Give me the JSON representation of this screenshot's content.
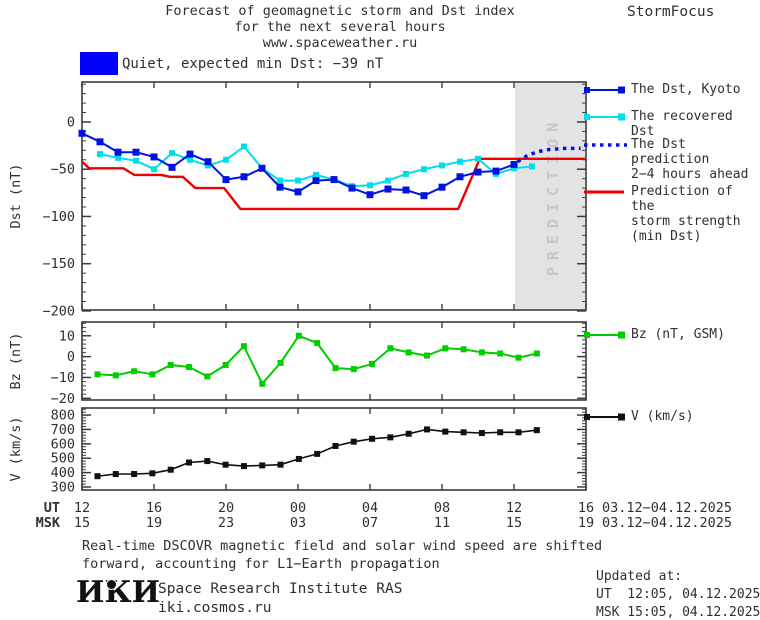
{
  "header": {
    "title_line1": "Forecast of geomagnetic storm and Dst index",
    "title_line2": "for the next several hours",
    "title_line3": "www.spaceweather.ru",
    "brand": "StormFocus"
  },
  "status": {
    "label": "Quiet, expected min Dst: −39 nT",
    "box_color": "#0000ff"
  },
  "prediction_zone": {
    "label": "PREDICTION",
    "x_from_hour": 24.06,
    "x_to_hour": 27.94,
    "fill_color": "#e3e3e3",
    "text_color": "#c7c7c7"
  },
  "legends": {
    "dst": [
      {
        "name": "dst-kyoto",
        "marker": "square-line",
        "color": "#0013e0",
        "lines": [
          "The Dst, Kyoto"
        ]
      },
      {
        "name": "recovered-dst",
        "marker": "square-line",
        "color": "#00dfe8",
        "lines": [
          "The recovered Dst"
        ]
      },
      {
        "name": "dst-prediction",
        "marker": "dotted",
        "color": "#0013e0",
        "lines": [
          "The Dst prediction",
          "2−4 hours ahead"
        ]
      },
      {
        "name": "storm-strength-prediction",
        "marker": "line",
        "color": "#ee0000",
        "lines": [
          "Prediction of the",
          "storm strength",
          "(min Dst)"
        ]
      }
    ],
    "bz": {
      "name": "bz-gsm",
      "marker": "square-line",
      "color": "#00cc00",
      "lines": [
        "Bz (nT, GSM)"
      ]
    },
    "v": {
      "name": "solar-wind-speed",
      "marker": "square-line",
      "color": "#111111",
      "lines": [
        "V (km/s)"
      ]
    }
  },
  "xaxis": {
    "ut_label": "UT",
    "msk_label": "MSK",
    "tick_hours": [
      0,
      4,
      8,
      12,
      16,
      20,
      24,
      28
    ],
    "ut_ticks": [
      "12",
      "16",
      "20",
      "00",
      "04",
      "08",
      "12",
      "16"
    ],
    "msk_ticks": [
      "15",
      "19",
      "23",
      "03",
      "07",
      "11",
      "15",
      "19"
    ],
    "ut_date": "03.12−04.12.2025",
    "msk_date": "03.12−04.12.2025"
  },
  "chart_data": [
    {
      "type": "line",
      "title": "Dst index: observed, recovered and predicted",
      "ylabel": "Dst (nT)",
      "yticks": [
        0,
        -50,
        -100,
        -150,
        -200
      ],
      "ylim": [
        -199,
        42.3
      ],
      "xlim": [
        0,
        28
      ],
      "minor_step": 10,
      "grid": false,
      "legend_position": "right",
      "series": [
        {
          "name": "storm-strength-prediction",
          "color": "#ee0000",
          "width": 2.4,
          "points": [
            [
              0,
              -42
            ],
            [
              0.4,
              -49
            ],
            [
              2.3,
              -49
            ],
            [
              2.9,
              -56
            ],
            [
              4.4,
              -56
            ],
            [
              4.9,
              -58
            ],
            [
              5.6,
              -58
            ],
            [
              6.3,
              -70
            ],
            [
              7.9,
              -70
            ],
            [
              8.8,
              -92
            ],
            [
              20.9,
              -92
            ],
            [
              22.1,
              -39
            ],
            [
              28,
              -39
            ]
          ]
        },
        {
          "name": "recovered-dst",
          "color": "#00dfe8",
          "width": 2,
          "marker": 6,
          "x_start": 1,
          "x_step": 1,
          "values": [
            -34,
            -38,
            -41,
            -50,
            -33,
            -40,
            -46,
            -40,
            -26,
            -49,
            -62,
            -62,
            -56,
            -61,
            -68,
            -67,
            -62,
            -55,
            -50,
            -46,
            -42,
            -39,
            -55,
            -49,
            -47
          ]
        },
        {
          "name": "dst-kyoto",
          "color": "#0013e0",
          "width": 2,
          "marker": 7,
          "x_start": 0,
          "x_step": 1,
          "values": [
            -12,
            -21,
            -32,
            -32,
            -37,
            -48,
            -34,
            -42,
            -61,
            -58,
            -49,
            -69,
            -74,
            -62,
            -61,
            -70,
            -77,
            -71,
            -72,
            -78,
            -69,
            -58,
            -53,
            -52,
            -45
          ]
        },
        {
          "name": "dst-prediction-2-4h",
          "color": "#0013e0",
          "width": 3.5,
          "dash": "3.5 4.5",
          "points": [
            [
              24.2,
              -42
            ],
            [
              24.7,
              -36
            ],
            [
              25.3,
              -31.5
            ],
            [
              26,
              -29
            ],
            [
              26.8,
              -28
            ],
            [
              27.7,
              -28
            ]
          ]
        }
      ]
    },
    {
      "type": "line",
      "title": "Interplanetary magnetic field Bz",
      "ylabel": "Bz (nT)",
      "yticks": [
        10,
        0,
        -10,
        -20
      ],
      "ylim": [
        -20.8,
        16.6
      ],
      "xlim": [
        0,
        28
      ],
      "minor_step": 2,
      "grid": false,
      "series": [
        {
          "name": "bz-gsm",
          "color": "#00cc00",
          "width": 2,
          "marker": 6,
          "x_start": 0.86,
          "x_step": 1.017,
          "values": [
            -8.5,
            -9,
            -7,
            -8.5,
            -4,
            -5,
            -9.5,
            -4,
            5,
            -13,
            -3,
            10,
            6.5,
            -5.5,
            -6,
            -3.5,
            4,
            2,
            0.5,
            4,
            3.5,
            2,
            1.5,
            -0.5,
            1.5
          ]
        }
      ]
    },
    {
      "type": "line",
      "title": "Solar wind speed",
      "ylabel": "V (km/s)",
      "yticks": [
        800,
        700,
        600,
        500,
        400,
        300
      ],
      "ylim": [
        279,
        849
      ],
      "xlim": [
        0,
        28
      ],
      "minor_step": 20,
      "grid": false,
      "series": [
        {
          "name": "solar-wind-speed",
          "color": "#111111",
          "width": 1.6,
          "marker": 6,
          "x_start": 0.86,
          "x_step": 1.017,
          "values": [
            375,
            390,
            390,
            395,
            420,
            470,
            480,
            455,
            445,
            450,
            455,
            495,
            530,
            585,
            615,
            635,
            645,
            670,
            700,
            685,
            680,
            675,
            680,
            680,
            695
          ]
        }
      ]
    }
  ],
  "footnote": {
    "line1": "Real-time DSCOVR magnetic field and solar wind speed are shifted",
    "line2": "forward, accounting for L1−Earth propagation"
  },
  "footer": {
    "logo_text": "ИКИ",
    "institute": "Space Research Institute RAS",
    "site": "iki.cosmos.ru",
    "updated_label": "Updated at:",
    "updated_ut": "UT  12:05, 04.12.2025",
    "updated_msk": "MSK 15:05, 04.12.2025"
  }
}
